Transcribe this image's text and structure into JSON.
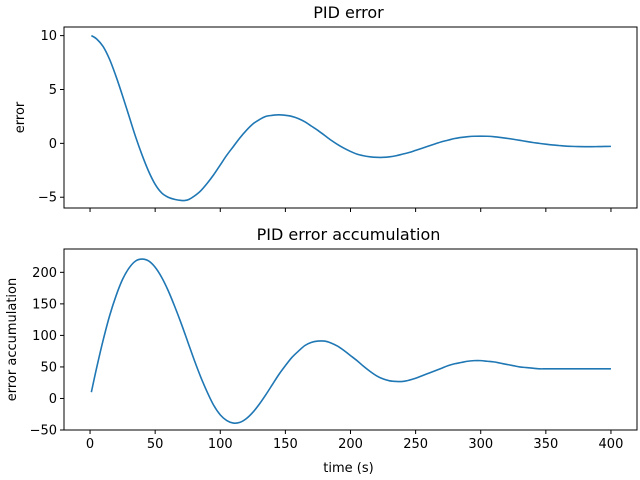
{
  "chart_data": [
    {
      "type": "line",
      "title": "PID error",
      "xlabel": "",
      "ylabel": "error",
      "xlim": [
        -20,
        420
      ],
      "ylim": [
        -6,
        10.8
      ],
      "xticks": [
        0,
        50,
        100,
        150,
        200,
        250,
        300,
        350,
        400
      ],
      "show_xtick_labels": false,
      "yticks": [
        -5,
        0,
        5,
        10
      ],
      "ytick_labels": [
        "−5",
        "0",
        "5",
        "10"
      ],
      "grid": false,
      "line_color": "#1f77b4",
      "series": [
        {
          "x": [
            1,
            5,
            10,
            15,
            20,
            25,
            30,
            35,
            40,
            45,
            50,
            55,
            60,
            65,
            70,
            73,
            76,
            80,
            85,
            90,
            95,
            100,
            105,
            110,
            115,
            120,
            125,
            130,
            135,
            140,
            145,
            150,
            155,
            160,
            165,
            170,
            175,
            180,
            185,
            190,
            195,
            200,
            205,
            210,
            215,
            220,
            225,
            230,
            235,
            240,
            245,
            250,
            255,
            260,
            265,
            270,
            275,
            280,
            285,
            290,
            295,
            300,
            305,
            310,
            315,
            320,
            325,
            330,
            335,
            340,
            345,
            350,
            355,
            360,
            365,
            370,
            375,
            380,
            385,
            390,
            395,
            400
          ],
          "y": [
            10.0,
            9.7,
            9.0,
            7.8,
            6.2,
            4.4,
            2.5,
            0.6,
            -1.1,
            -2.6,
            -3.8,
            -4.6,
            -5.0,
            -5.2,
            -5.3,
            -5.3,
            -5.2,
            -4.9,
            -4.4,
            -3.7,
            -2.9,
            -2.0,
            -1.1,
            -0.3,
            0.5,
            1.2,
            1.8,
            2.2,
            2.5,
            2.6,
            2.65,
            2.6,
            2.5,
            2.3,
            2.0,
            1.6,
            1.2,
            0.75,
            0.3,
            -0.1,
            -0.45,
            -0.75,
            -1.0,
            -1.15,
            -1.25,
            -1.3,
            -1.3,
            -1.25,
            -1.15,
            -1.0,
            -0.85,
            -0.65,
            -0.45,
            -0.25,
            -0.05,
            0.15,
            0.3,
            0.45,
            0.55,
            0.62,
            0.66,
            0.67,
            0.66,
            0.62,
            0.55,
            0.47,
            0.38,
            0.28,
            0.18,
            0.08,
            0.0,
            -0.08,
            -0.15,
            -0.2,
            -0.25,
            -0.28,
            -0.3,
            -0.31,
            -0.31,
            -0.3,
            -0.29,
            -0.28
          ]
        }
      ]
    },
    {
      "type": "line",
      "title": "PID error accumulation",
      "xlabel": "time (s)",
      "ylabel": "error accumulation",
      "xlim": [
        -20,
        420
      ],
      "ylim": [
        -50,
        237
      ],
      "xticks": [
        0,
        50,
        100,
        150,
        200,
        250,
        300,
        350,
        400
      ],
      "xtick_labels": [
        "0",
        "50",
        "100",
        "150",
        "200",
        "250",
        "300",
        "350",
        "400"
      ],
      "show_xtick_labels": true,
      "yticks": [
        -50,
        0,
        50,
        100,
        150,
        200
      ],
      "ytick_labels": [
        "−50",
        "0",
        "50",
        "100",
        "150",
        "200"
      ],
      "grid": false,
      "line_color": "#1f77b4",
      "series": [
        {
          "x": [
            1,
            5,
            10,
            15,
            20,
            25,
            30,
            35,
            40,
            45,
            50,
            55,
            60,
            65,
            70,
            75,
            80,
            85,
            90,
            95,
            100,
            105,
            110,
            115,
            120,
            125,
            130,
            135,
            140,
            145,
            150,
            155,
            160,
            165,
            170,
            175,
            180,
            185,
            190,
            195,
            200,
            205,
            210,
            215,
            220,
            225,
            230,
            235,
            240,
            245,
            250,
            255,
            260,
            265,
            270,
            275,
            280,
            285,
            290,
            295,
            300,
            305,
            310,
            315,
            320,
            325,
            330,
            335,
            340,
            345,
            350,
            355,
            360,
            365,
            370,
            375,
            380,
            385,
            390,
            395,
            400
          ],
          "y": [
            10,
            48,
            92,
            131,
            163,
            189,
            207,
            218,
            221,
            218,
            208,
            192,
            171,
            146,
            119,
            90,
            61,
            34,
            10,
            -11,
            -26,
            -35,
            -39,
            -38,
            -32,
            -22,
            -9,
            6,
            22,
            38,
            52,
            65,
            75,
            84,
            89,
            91,
            91,
            88,
            83,
            76,
            68,
            60,
            51,
            43,
            36,
            31,
            28,
            27,
            27,
            29,
            32,
            36,
            40,
            44,
            48,
            52,
            55,
            57,
            59,
            60,
            60,
            59,
            58,
            56,
            54,
            52,
            50,
            49,
            48,
            47,
            47,
            47,
            47,
            47,
            47,
            47,
            47,
            47,
            47,
            47,
            47
          ]
        }
      ]
    }
  ]
}
